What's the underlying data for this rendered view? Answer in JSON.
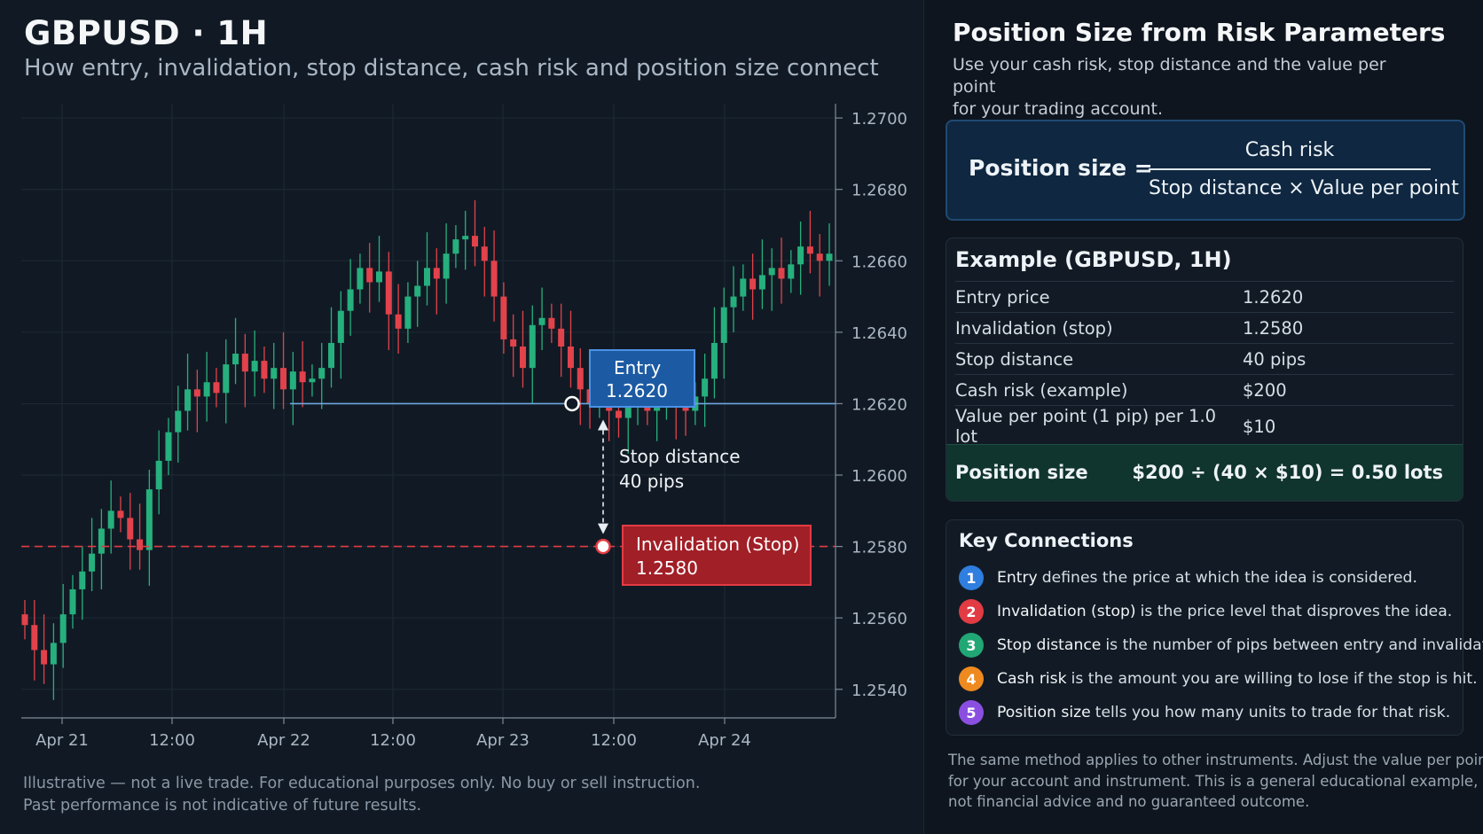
{
  "left": {
    "title": "GBPUSD · 1H",
    "subtitle": "How entry, invalidation, stop distance, cash risk and position size connect",
    "disclaimer": [
      "Illustrative — not a live trade. For educational purposes only. No buy or sell instruction.",
      "Past performance is not indicative of future results."
    ]
  },
  "chart_data": {
    "type": "candlestick",
    "ylim": [
      1.2532,
      1.2704
    ],
    "yticks": [
      "1.2700",
      "1.2680",
      "1.2660",
      "1.2640",
      "1.2620",
      "1.2600",
      "1.2580",
      "1.2560",
      "1.2540"
    ],
    "xtick_labels": [
      "Apr 21",
      "12:00",
      "Apr 22",
      "12:00",
      "Apr 23",
      "12:00",
      "Apr 24"
    ],
    "grid": true,
    "up_color": "#26b07d",
    "down_color": "#e2424b",
    "entry": {
      "label": "Entry",
      "value": "1.2620",
      "price": 1.262
    },
    "stop": {
      "label": "Invalidation (Stop)",
      "value": "1.2580",
      "price": 1.258
    },
    "stop_distance": {
      "label": "Stop distance",
      "value": "40 pips"
    },
    "close": [
      1.2558,
      1.2551,
      1.2547,
      1.2553,
      1.2561,
      1.2568,
      1.2573,
      1.2578,
      1.2585,
      1.259,
      1.2588,
      1.2582,
      1.2579,
      1.2596,
      1.2604,
      1.2612,
      1.2618,
      1.2624,
      1.2622,
      1.2626,
      1.2623,
      1.2631,
      1.2634,
      1.2629,
      1.2632,
      1.2627,
      1.263,
      1.2624,
      1.2629,
      1.2626,
      1.2627,
      1.263,
      1.2637,
      1.2646,
      1.2652,
      1.2658,
      1.2654,
      1.2657,
      1.2645,
      1.2641,
      1.265,
      1.2653,
      1.2658,
      1.2655,
      1.2662,
      1.2666,
      1.2667,
      1.2664,
      1.266,
      1.265,
      1.2638,
      1.2636,
      1.263,
      1.2642,
      1.2644,
      1.2641,
      1.2636,
      1.263,
      1.2624,
      1.262,
      1.2622,
      1.2618,
      1.2616,
      1.2621,
      1.2624,
      1.2618,
      1.2621,
      1.2623,
      1.262,
      1.2618,
      1.2622,
      1.2627,
      1.2637,
      1.2647,
      1.265,
      1.2655,
      1.2652,
      1.2656,
      1.2658,
      1.2655,
      1.2659,
      1.2664,
      1.2662,
      1.266,
      1.2662
    ]
  },
  "right": {
    "title": "Position Size from Risk Parameters",
    "intro": [
      "Use your cash risk, stop distance and the value per point",
      "for your trading account."
    ],
    "formula": {
      "lhs": "Position size  =",
      "numerator": "Cash risk",
      "denominator": "Stop distance  ×  Value per point"
    },
    "example": {
      "title": "Example (GBPUSD, 1H)",
      "rows": [
        {
          "label": "Entry price",
          "value": "1.2620"
        },
        {
          "label": "Invalidation (stop)",
          "value": "1.2580"
        },
        {
          "label": "Stop distance",
          "value": "40 pips"
        },
        {
          "label": "Cash risk (example)",
          "value": "$200"
        },
        {
          "label": "Value per point (1 pip) per 1.0 lot",
          "value": "$10"
        }
      ],
      "result_label": "Position size",
      "result_value": "$200 ÷ (40 × $10) = 0.50 lots"
    },
    "key_connections": {
      "title": "Key Connections",
      "items": [
        {
          "num": "1",
          "color": "#2f7ee0",
          "keyword": "Entry",
          "text": "defines the price at which the idea is considered."
        },
        {
          "num": "2",
          "color": "#e23b44",
          "keyword": "Invalidation (stop)",
          "text": "is the price level that disproves the idea."
        },
        {
          "num": "3",
          "color": "#21a775",
          "keyword": "Stop distance",
          "text": "is the number of pips between entry and invalidation."
        },
        {
          "num": "4",
          "color": "#ee8a1f",
          "keyword": "Cash risk",
          "text": "is the amount you are willing to lose if the stop is hit."
        },
        {
          "num": "5",
          "color": "#8a4fe0",
          "keyword": "Position size",
          "text": "tells you how many units to trade for that risk."
        }
      ]
    },
    "footer": [
      "The same method applies to other instruments. Adjust the value per point",
      "for your account and instrument. This is a general educational example,",
      "not financial advice and no guaranteed outcome."
    ]
  }
}
